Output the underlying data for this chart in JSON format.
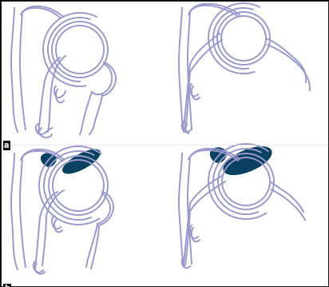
{
  "background_color": "#ffffff",
  "border_color": "#000000",
  "line_color": "#9999cc",
  "fill_color": "#0a4060",
  "fig_width": 4.12,
  "fig_height": 3.59,
  "dpi": 100
}
